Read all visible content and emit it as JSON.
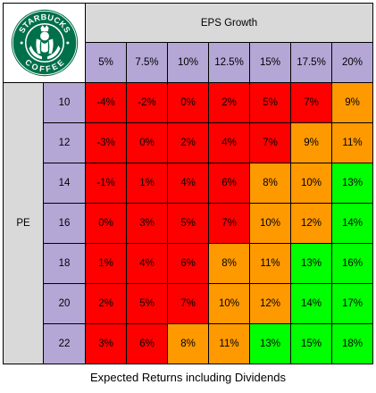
{
  "colors": {
    "red": "#ff0000",
    "orange": "#ff9900",
    "green": "#00ff00",
    "header_gray": "#d9d9d9",
    "lavender": "#b4a7d6",
    "logo_green": "#00704a"
  },
  "logo": {
    "icon": "starbucks-siren-logo",
    "text_top": "STARBUCKS",
    "text_bottom": "COFFEE"
  },
  "chart_data": {
    "type": "table",
    "title": "",
    "column_group_label": "EPS Growth",
    "row_group_label": "PE",
    "columns": [
      "5%",
      "7.5%",
      "10%",
      "12.5%",
      "15%",
      "17.5%",
      "20%"
    ],
    "rows": [
      "10",
      "12",
      "14",
      "16",
      "18",
      "20",
      "22"
    ],
    "values": [
      [
        "-4%",
        "-2%",
        "0%",
        "2%",
        "5%",
        "7%",
        "9%"
      ],
      [
        "-3%",
        "0%",
        "2%",
        "4%",
        "7%",
        "9%",
        "11%"
      ],
      [
        "-1%",
        "1%",
        "4%",
        "6%",
        "8%",
        "10%",
        "13%"
      ],
      [
        "0%",
        "3%",
        "5%",
        "7%",
        "10%",
        "12%",
        "14%"
      ],
      [
        "1%",
        "4%",
        "6%",
        "8%",
        "11%",
        "13%",
        "16%"
      ],
      [
        "2%",
        "5%",
        "7%",
        "10%",
        "12%",
        "14%",
        "17%"
      ],
      [
        "3%",
        "6%",
        "8%",
        "11%",
        "13%",
        "15%",
        "18%"
      ]
    ],
    "cell_colors": [
      [
        "red",
        "red",
        "red",
        "red",
        "red",
        "red",
        "orange"
      ],
      [
        "red",
        "red",
        "red",
        "red",
        "red",
        "orange",
        "orange"
      ],
      [
        "red",
        "red",
        "red",
        "red",
        "orange",
        "orange",
        "green"
      ],
      [
        "red",
        "red",
        "red",
        "red",
        "orange",
        "orange",
        "green"
      ],
      [
        "red",
        "red",
        "red",
        "orange",
        "orange",
        "green",
        "green"
      ],
      [
        "red",
        "red",
        "red",
        "orange",
        "orange",
        "green",
        "green"
      ],
      [
        "red",
        "red",
        "orange",
        "orange",
        "green",
        "green",
        "green"
      ]
    ],
    "caption": "Expected Returns including Dividends"
  }
}
